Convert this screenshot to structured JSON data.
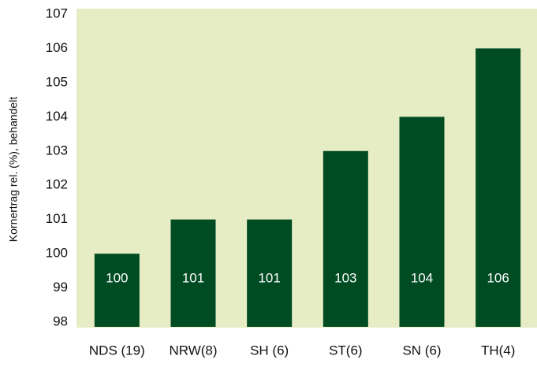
{
  "chart_data": {
    "type": "bar",
    "y_label": "Kornertrag rel. (%), behandelt",
    "categories": [
      "NDS (19)",
      "NRW(8)",
      "SH (6)",
      "ST(6)",
      "SN (6)",
      "TH(4)"
    ],
    "values": [
      100,
      101,
      101,
      103,
      104,
      106
    ],
    "color": "#004c22",
    "ylim": [
      98,
      107
    ],
    "yticks": [
      98,
      99,
      100,
      101,
      102,
      103,
      104,
      105,
      106,
      107
    ],
    "grid": false
  }
}
